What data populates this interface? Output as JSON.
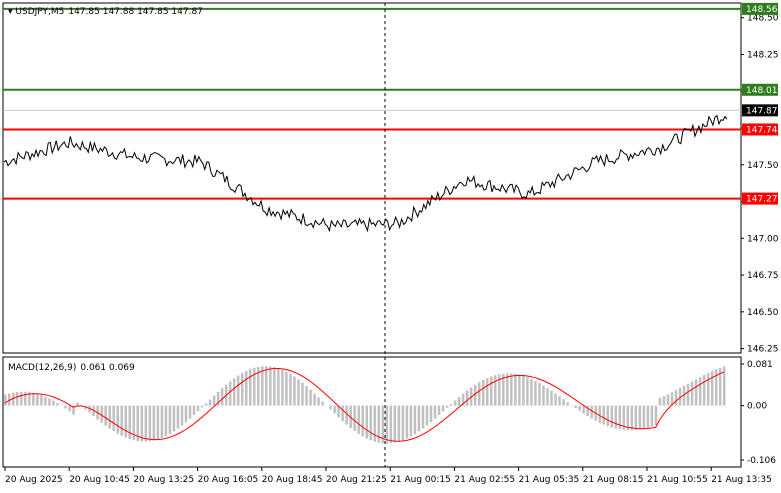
{
  "header": {
    "symbol_label": "USDJPY,M5",
    "ohlc": "147.85 147.88 147.85 147.87"
  },
  "price_axis": {
    "ticks": [
      "148.50",
      "148.25",
      "147.50",
      "147.25",
      "147.00",
      "146.75",
      "146.50",
      "146.25"
    ],
    "hidden_ticks": [
      "148.00",
      "147.75"
    ]
  },
  "levels": [
    {
      "label": "148.56",
      "value": 148.56,
      "color": "#2e7d1e",
      "text_color": "#ffffff"
    },
    {
      "label": "148.01",
      "value": 148.01,
      "color": "#2e7d1e",
      "text_color": "#ffffff"
    },
    {
      "label": "147.74",
      "value": 147.74,
      "color": "#ff0000",
      "text_color": "#ffffff"
    },
    {
      "label": "147.27",
      "value": 147.27,
      "color": "#ff0000",
      "text_color": "#ffffff"
    }
  ],
  "current_price": {
    "label": "147.87",
    "value": 147.87,
    "color": "#000000"
  },
  "macd": {
    "label": "MACD(12,26,9)",
    "values": "0.061 0.069",
    "axis_ticks": [
      "0.081",
      "0.00",
      "-0.106"
    ],
    "histogram_color": "#c0c0c0",
    "signal_color": "#ff0000"
  },
  "time_axis": [
    "20 Aug 2025",
    "20 Aug 10:45",
    "20 Aug 13:25",
    "20 Aug 16:05",
    "20 Aug 18:45",
    "20 Aug 21:25",
    "21 Aug 00:15",
    "21 Aug 02:55",
    "21 Aug 05:35",
    "21 Aug 08:15",
    "21 Aug 10:55",
    "21 Aug 13:35"
  ],
  "colors": {
    "price_line": "#000000",
    "grid": "#c8c8c8",
    "separator": "#000000"
  },
  "chart_data": {
    "type": "line",
    "title": "USDJPY,M5",
    "x": [
      "20 Aug 2025",
      "20 Aug 10:45",
      "20 Aug 13:25",
      "20 Aug 16:05",
      "20 Aug 18:45",
      "20 Aug 21:25",
      "21 Aug 00:15",
      "21 Aug 02:55",
      "21 Aug 05:35",
      "21 Aug 08:15",
      "21 Aug 10:55",
      "21 Aug 13:35"
    ],
    "ylim": [
      146.22,
      148.6
    ],
    "series": [
      {
        "values": [
          147.52,
          147.65,
          147.55,
          147.52,
          147.2,
          147.08,
          147.1,
          147.4,
          147.3,
          147.52,
          147.62,
          147.85
        ]
      }
    ]
  }
}
